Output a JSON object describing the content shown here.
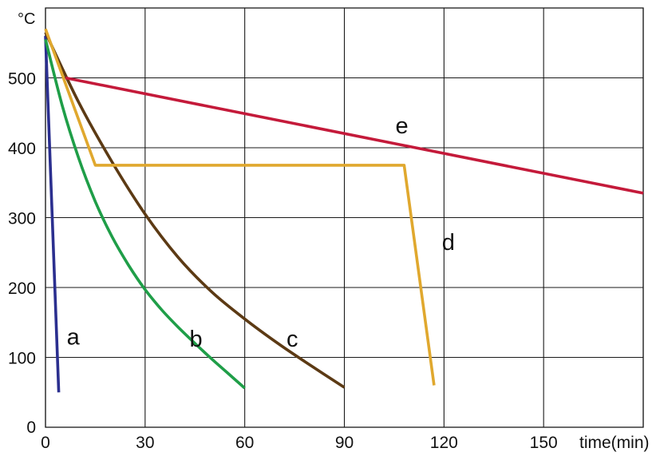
{
  "chart_data": {
    "type": "line",
    "title": "",
    "xlabel": "time(min)",
    "ylabel": "°C",
    "xlim": [
      0,
      180
    ],
    "ylim": [
      0,
      600
    ],
    "x_ticks": [
      0,
      30,
      60,
      90,
      120,
      150
    ],
    "y_ticks": [
      0,
      100,
      200,
      300,
      400,
      500
    ],
    "grid": true,
    "series": [
      {
        "name": "a",
        "color": "#2b2f8f",
        "x": [
          0,
          4
        ],
        "y": [
          560,
          50
        ]
      },
      {
        "name": "b",
        "color": "#1f9e48",
        "x": [
          0,
          5,
          10,
          15,
          20,
          25,
          30,
          35,
          40,
          45,
          50,
          55,
          60
        ],
        "y": [
          555,
          461,
          385,
          323,
          273,
          232,
          197,
          168,
          143,
          120,
          98,
          77,
          56
        ]
      },
      {
        "name": "c",
        "color": "#5c3a14",
        "x": [
          0,
          10,
          20,
          30,
          40,
          50,
          60,
          70,
          80,
          90
        ],
        "y": [
          565,
          465,
          380,
          305,
          243,
          194,
          155,
          120,
          88,
          57
        ]
      },
      {
        "name": "d",
        "color": "#e0a82e",
        "x": [
          0,
          15,
          108,
          117
        ],
        "y": [
          570,
          375,
          375,
          60
        ]
      },
      {
        "name": "e",
        "color": "#c41a3a",
        "x": [
          6,
          180
        ],
        "y": [
          500,
          335
        ]
      }
    ]
  }
}
